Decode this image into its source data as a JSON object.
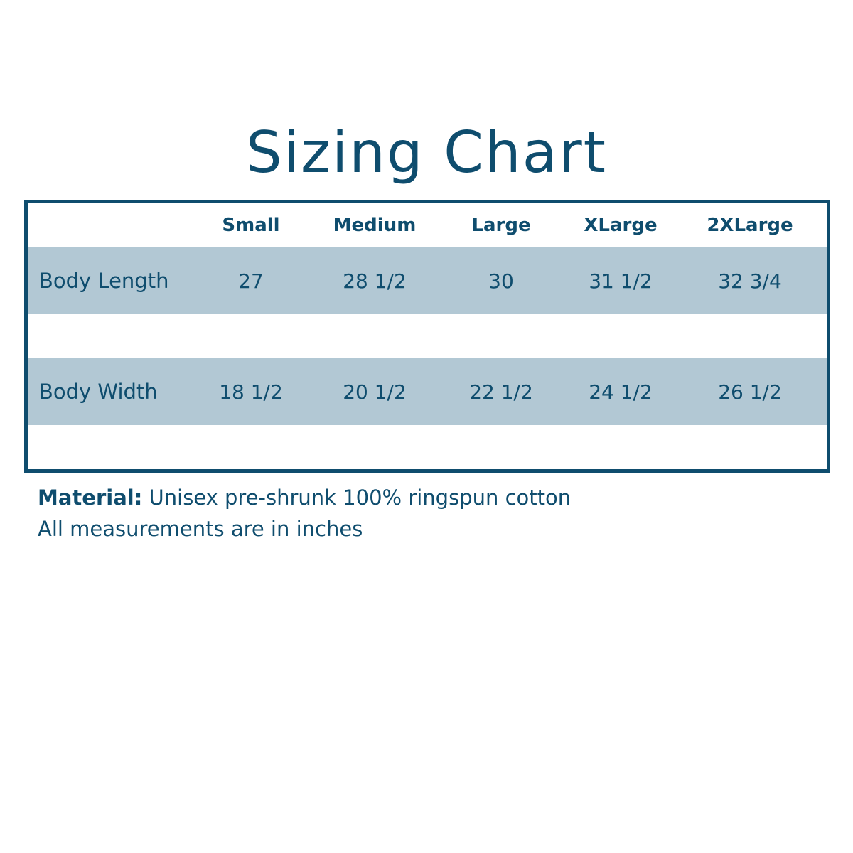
{
  "title": "Sizing Chart",
  "table": {
    "columns": [
      "Small",
      "Medium",
      "Large",
      "XLarge",
      "2XLarge"
    ],
    "rows": [
      {
        "label": "Body Length",
        "values": [
          "27",
          "28 1/2",
          "30",
          "31 1/2",
          "32 3/4"
        ]
      },
      {
        "label": "Body Width",
        "values": [
          "18 1/2",
          "20 1/2",
          "22 1/2",
          "24 1/2",
          "26 1/2"
        ]
      }
    ]
  },
  "notes": {
    "material_label": "Material:",
    "material_value": " Unisex pre-shrunk 100% ringspun cotton",
    "units": "All measurements are in inches"
  },
  "colors": {
    "text": "#0f4d6e",
    "band": "#b2c8d4",
    "border": "#0f4d6e"
  }
}
